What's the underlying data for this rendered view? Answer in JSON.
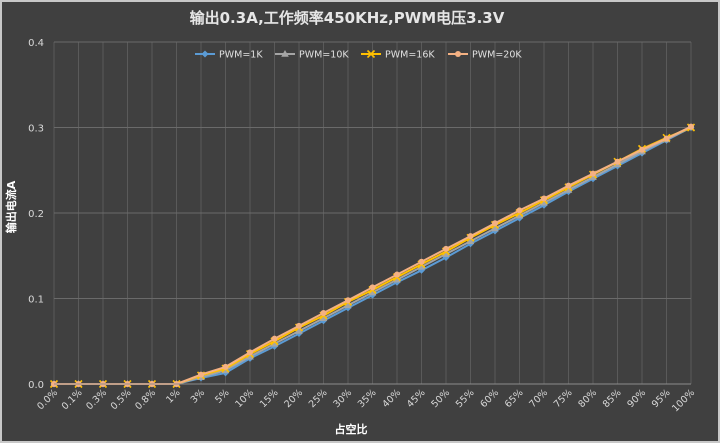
{
  "chart_data": {
    "type": "line",
    "title": "输出0.3A,工作频率450KHz,PWM电压3.3V",
    "xlabel": "占空比",
    "ylabel": "输出电流A",
    "ylim": [
      0,
      0.4
    ],
    "yticks": [
      "0.0",
      "0.1",
      "0.2",
      "0.3",
      "0.4"
    ],
    "grid": true,
    "legend_position": "top",
    "categories": [
      "0.0%",
      "0.1%",
      "0.3%",
      "0.5%",
      "0.8%",
      "1%",
      "3%",
      "5%",
      "10%",
      "15%",
      "20%",
      "25%",
      "30%",
      "35%",
      "40%",
      "45%",
      "50%",
      "55%",
      "60%",
      "65%",
      "70%",
      "75%",
      "80%",
      "85%",
      "90%",
      "95%",
      "100%"
    ],
    "series": [
      {
        "name": "PWM=1K",
        "color": "#5b9bd5",
        "marker": "diamond",
        "values": [
          0,
          0,
          0,
          0,
          0,
          0,
          0.007,
          0.013,
          0.03,
          0.044,
          0.059,
          0.074,
          0.089,
          0.104,
          0.119,
          0.133,
          0.148,
          0.164,
          0.179,
          0.194,
          0.209,
          0.225,
          0.24,
          0.255,
          0.27,
          0.285,
          0.3
        ]
      },
      {
        "name": "PWM=10K",
        "color": "#a5a5a5",
        "marker": "triangle",
        "values": [
          0,
          0,
          0,
          0,
          0,
          0,
          0.008,
          0.016,
          0.032,
          0.047,
          0.062,
          0.077,
          0.092,
          0.107,
          0.122,
          0.137,
          0.152,
          0.167,
          0.182,
          0.197,
          0.212,
          0.227,
          0.242,
          0.257,
          0.272,
          0.286,
          0.3
        ]
      },
      {
        "name": "PWM=16K",
        "color": "#ffc000",
        "marker": "x",
        "values": [
          0,
          0,
          0,
          0,
          0,
          0,
          0.01,
          0.018,
          0.035,
          0.05,
          0.066,
          0.08,
          0.096,
          0.11,
          0.125,
          0.14,
          0.155,
          0.171,
          0.186,
          0.2,
          0.215,
          0.23,
          0.245,
          0.26,
          0.275,
          0.288,
          0.3
        ]
      },
      {
        "name": "PWM=20K",
        "color": "#f4b183",
        "marker": "circle",
        "values": [
          0,
          0,
          0,
          0,
          0,
          0,
          0.011,
          0.02,
          0.037,
          0.053,
          0.068,
          0.083,
          0.098,
          0.113,
          0.128,
          0.143,
          0.158,
          0.173,
          0.188,
          0.203,
          0.217,
          0.232,
          0.246,
          0.26,
          0.274,
          0.287,
          0.301
        ]
      }
    ]
  }
}
